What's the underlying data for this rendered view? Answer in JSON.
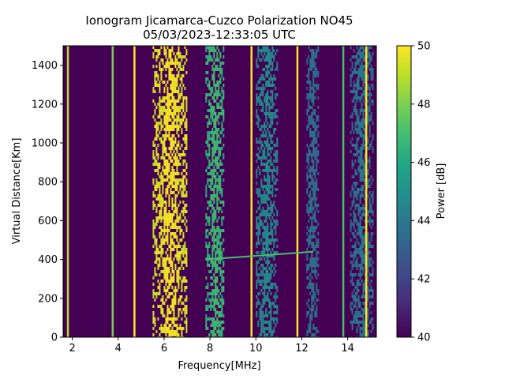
{
  "chart_data": {
    "type": "heatmap",
    "title_line1": "Ionogram Jicamarca-Cuzco Polarization NO45",
    "title_line2": "05/03/2023-12:33:05 UTC",
    "xlabel": "Frequency[MHz]",
    "ylabel": "Virtual Distance[Km]",
    "xlim": [
      1.6,
      15.25
    ],
    "ylim": [
      0,
      1500
    ],
    "xticks": [
      2,
      4,
      6,
      8,
      10,
      12,
      14
    ],
    "yticks": [
      0,
      200,
      400,
      600,
      800,
      1000,
      1200,
      1400
    ],
    "colormap": "viridis",
    "colorbar": {
      "label": "Power [dB]",
      "range": [
        40,
        50
      ],
      "ticks": [
        40,
        42,
        44,
        46,
        48,
        50
      ]
    },
    "background_power_db": 40,
    "features": [
      {
        "kind": "band",
        "x_start": 5.5,
        "x_end": 7.0,
        "power_db": 50
      },
      {
        "kind": "band",
        "x_start": 7.8,
        "x_end": 8.6,
        "power_db": 47
      },
      {
        "kind": "band",
        "x_start": 10.0,
        "x_end": 10.9,
        "power_db": 45
      },
      {
        "kind": "band",
        "x_start": 12.2,
        "x_end": 12.7,
        "power_db": 44
      },
      {
        "kind": "band",
        "x_start": 14.1,
        "x_end": 15.1,
        "power_db": 44
      },
      {
        "kind": "line",
        "x": 1.8,
        "power_db": 49
      },
      {
        "kind": "line",
        "x": 3.75,
        "power_db": 48
      },
      {
        "kind": "line",
        "x": 4.7,
        "power_db": 50
      },
      {
        "kind": "line",
        "x": 9.8,
        "power_db": 50
      },
      {
        "kind": "line",
        "x": 11.8,
        "power_db": 50
      },
      {
        "kind": "line",
        "x": 13.8,
        "power_db": 47
      },
      {
        "kind": "line",
        "x": 14.8,
        "power_db": 50
      },
      {
        "kind": "trace",
        "x_start": 7.8,
        "x_end": 12.5,
        "y_start": 400,
        "y_end": 440,
        "power_db": 47
      }
    ]
  }
}
